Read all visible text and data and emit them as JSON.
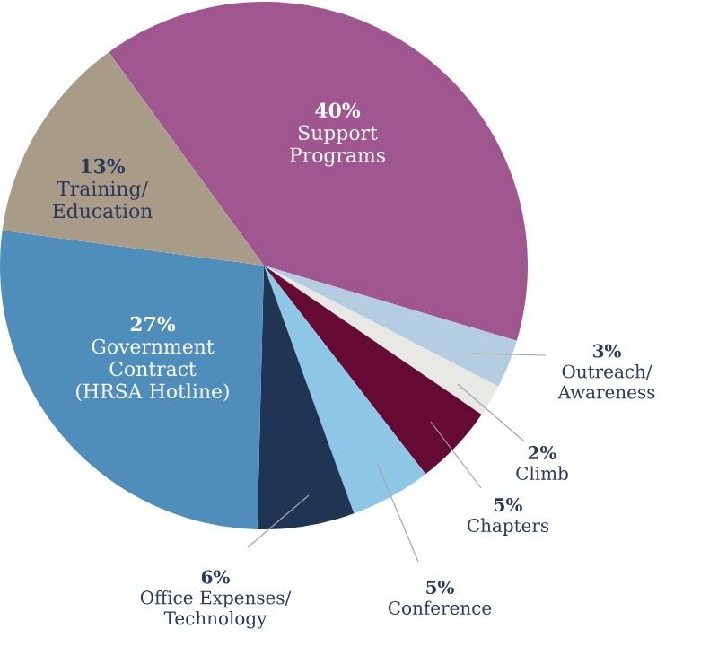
{
  "chart_data": {
    "type": "pie",
    "categories": [
      "Support Programs",
      "Outreach/ Awareness",
      "Climb",
      "Chapters",
      "Conference",
      "Office Expenses/ Technology",
      "Government Contract (HRSA Hotline)",
      "Training/ Education"
    ],
    "values": [
      40,
      3,
      2,
      5,
      5,
      6,
      27,
      13
    ],
    "colors": [
      "#a0578f",
      "#b5cde0",
      "#e8e8e4",
      "#650a33",
      "#8ec6e6",
      "#1f3553",
      "#4f8dbb",
      "#a89c88"
    ],
    "value_labels": [
      "40%",
      "3%",
      "2%",
      "5%",
      "5%",
      "6%",
      "27%",
      "13%"
    ]
  }
}
